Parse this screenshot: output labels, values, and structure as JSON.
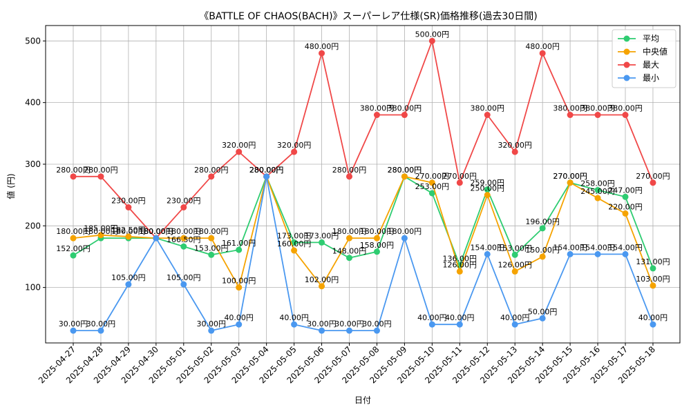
{
  "chart_data": {
    "type": "line",
    "title": "《BATTLE OF CHAOS(BACH)》スーパーレア仕様(SR)価格推移(過去30日間)",
    "xlabel": "日付",
    "ylabel": "値 (円)",
    "ylim": [
      10,
      525
    ],
    "yticks": [
      100,
      200,
      300,
      400,
      500
    ],
    "grid": true,
    "legend_position": "top-right",
    "value_suffix": "円",
    "categories": [
      "2025-04-27",
      "2025-04-28",
      "2025-04-29",
      "2025-04-30",
      "2025-05-01",
      "2025-05-02",
      "2025-05-03",
      "2025-05-04",
      "2025-05-05",
      "2025-05-06",
      "2025-05-07",
      "2025-05-08",
      "2025-05-09",
      "2025-05-10",
      "2025-05-11",
      "2025-05-12",
      "2025-05-13",
      "2025-05-14",
      "2025-05-15",
      "2025-05-16",
      "2025-05-17",
      "2025-05-18"
    ],
    "series": [
      {
        "name": "平均",
        "color": "#2ecc71",
        "values": [
          152,
          180,
          180,
          180,
          166.5,
          153,
          161,
          280,
          173,
          173,
          148,
          158,
          280,
          253,
          136,
          259,
          153,
          196,
          270,
          258,
          247,
          131
        ]
      },
      {
        "name": "中央値",
        "color": "#f5a300",
        "values": [
          180,
          185,
          182.5,
          180,
          180,
          180,
          100,
          280,
          160,
          102,
          180,
          180,
          280,
          270,
          126,
          250,
          126,
          150,
          270,
          245,
          220,
          103
        ]
      },
      {
        "name": "最大",
        "color": "#f04848",
        "values": [
          280,
          280,
          230,
          180,
          230,
          280,
          320,
          280,
          320,
          480,
          280,
          380,
          380,
          500,
          270,
          380,
          320,
          480,
          380,
          380,
          380,
          270
        ]
      },
      {
        "name": "最小",
        "color": "#4a98f0",
        "values": [
          30,
          30,
          105,
          180,
          105,
          30,
          40,
          280,
          40,
          30,
          30,
          30,
          180,
          40,
          40,
          154,
          40,
          50,
          154,
          154,
          154,
          40
        ]
      }
    ]
  }
}
